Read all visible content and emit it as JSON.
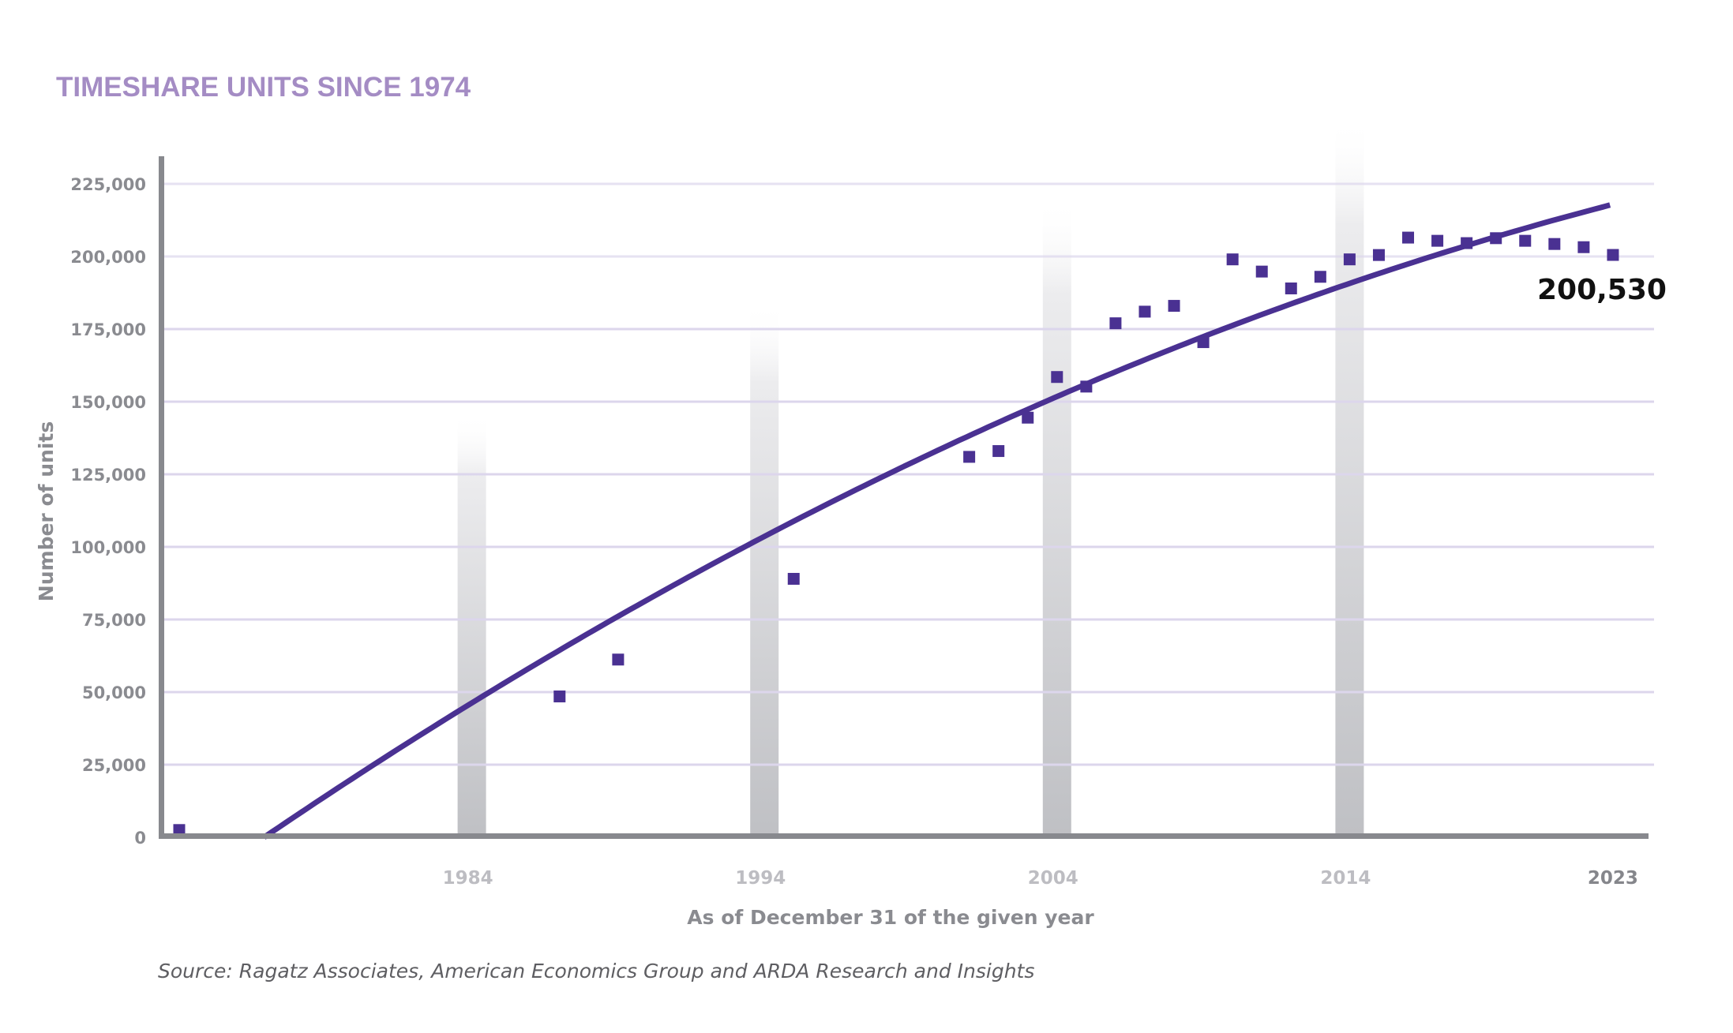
{
  "colors": {
    "title": "#a48cc4",
    "series": "#4a3192",
    "grid": "#dcd6ec",
    "axis": "#88898e",
    "band": "#c4c4c8"
  },
  "chart_data": {
    "type": "scatter",
    "title": "TIMESHARE UNITS SINCE 1974",
    "xlabel": "As of December 31 of the given year",
    "ylabel": "Number of units",
    "source": "Source: Ragatz Associates, American Economics Group and ARDA Research and Insights",
    "xlim": [
      1974,
      2023
    ],
    "ylim": [
      0,
      225000
    ],
    "grid": true,
    "legend": "none",
    "y_ticks": [
      {
        "value": 0,
        "label": "0"
      },
      {
        "value": 25000,
        "label": "25,000"
      },
      {
        "value": 50000,
        "label": "50,000"
      },
      {
        "value": 75000,
        "label": "75,000"
      },
      {
        "value": 100000,
        "label": "100,000"
      },
      {
        "value": 125000,
        "label": "125,000"
      },
      {
        "value": 150000,
        "label": "150,000"
      },
      {
        "value": 175000,
        "label": "175,000"
      },
      {
        "value": 200000,
        "label": "200,000"
      },
      {
        "value": 225000,
        "label": "225,000"
      }
    ],
    "x_ticks": [
      {
        "value": 1984,
        "label": "1984"
      },
      {
        "value": 1994,
        "label": "1994"
      },
      {
        "value": 2004,
        "label": "2004"
      },
      {
        "value": 2014,
        "label": "2014"
      },
      {
        "value": 2023,
        "label": "2023"
      }
    ],
    "highlight_years": [
      1984,
      1994,
      2004,
      2014
    ],
    "series": [
      {
        "name": "Timeshare units",
        "marker": "square",
        "points": [
          {
            "x": 1974,
            "y": 2500
          },
          {
            "x": 1987,
            "y": 48500
          },
          {
            "x": 1989,
            "y": 61200
          },
          {
            "x": 1995,
            "y": 89000
          },
          {
            "x": 2001,
            "y": 131000
          },
          {
            "x": 2002,
            "y": 133000
          },
          {
            "x": 2003,
            "y": 144500
          },
          {
            "x": 2004,
            "y": 158500
          },
          {
            "x": 2005,
            "y": 155200
          },
          {
            "x": 2006,
            "y": 177000
          },
          {
            "x": 2007,
            "y": 181000
          },
          {
            "x": 2008,
            "y": 183000
          },
          {
            "x": 2009,
            "y": 170500
          },
          {
            "x": 2010,
            "y": 199000
          },
          {
            "x": 2011,
            "y": 194800
          },
          {
            "x": 2012,
            "y": 189000
          },
          {
            "x": 2013,
            "y": 193000
          },
          {
            "x": 2014,
            "y": 199000
          },
          {
            "x": 2015,
            "y": 200500
          },
          {
            "x": 2016,
            "y": 206500
          },
          {
            "x": 2017,
            "y": 205400
          },
          {
            "x": 2018,
            "y": 204600
          },
          {
            "x": 2019,
            "y": 206300
          },
          {
            "x": 2020,
            "y": 205400
          },
          {
            "x": 2021,
            "y": 204300
          },
          {
            "x": 2022,
            "y": 203200
          },
          {
            "x": 2023,
            "y": 200530
          }
        ]
      },
      {
        "name": "Trend line",
        "type": "line",
        "points": [
          {
            "x": 1976.9,
            "y": 0
          },
          {
            "x": 1984,
            "y": 48000
          },
          {
            "x": 1994,
            "y": 103300
          },
          {
            "x": 2004,
            "y": 151600
          },
          {
            "x": 2014,
            "y": 190000
          },
          {
            "x": 2023,
            "y": 218500
          }
        ]
      }
    ],
    "annotations": [
      {
        "x": 2023,
        "y": 200530,
        "text": "200,530"
      }
    ]
  }
}
